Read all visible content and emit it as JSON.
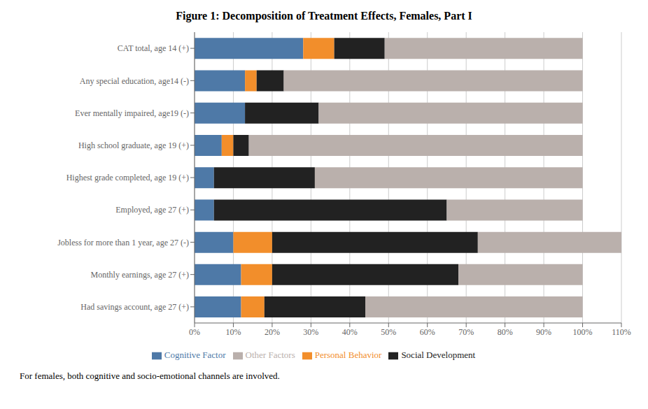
{
  "chart_data": {
    "type": "bar",
    "title": "Figure 1: Decomposition of Treatment Effects, Females, Part I",
    "annotations": [
      "For females, both cognitive and socio-emotional channels are involved."
    ],
    "orientation": "horizontal",
    "stacked": true,
    "grid": true,
    "legend": "bottom",
    "categories": [
      "CAT total, age 14 (+)",
      "Any special education, age14 (-)",
      "Ever mentally impaired, age19 (-)",
      "High school graduate, age 19 (+)",
      "Highest grade completed, age 19 (+)",
      "Employed, age 27 (+)",
      "Jobless for more than 1 year, age 27 (-)",
      "Monthly earnings, age 27 (+)",
      "Had savings account, age 27 (+)"
    ],
    "series": [
      {
        "name": "Cognitive Factor",
        "color": "#4e79a7",
        "values": [
          0.28,
          0.13,
          0.13,
          0.07,
          0.05,
          0.05,
          0.1,
          0.12,
          0.12
        ]
      },
      {
        "name": "Personal Behavior",
        "color": "#f28e2b",
        "values": [
          0.08,
          0.03,
          0.0,
          0.03,
          0.0,
          0.0,
          0.1,
          0.08,
          0.06
        ]
      },
      {
        "name": "Social Development",
        "color": "#222222",
        "values": [
          0.13,
          0.07,
          0.19,
          0.04,
          0.26,
          0.6,
          0.53,
          0.48,
          0.26
        ]
      },
      {
        "name": "Other Factors",
        "color": "#bab0ac",
        "values": [
          0.51,
          0.77,
          0.68,
          0.86,
          0.69,
          0.35,
          0.37,
          0.32,
          0.56
        ]
      }
    ],
    "xlim": [
      0,
      1.1
    ],
    "xticks": [
      {
        "value": 0,
        "label": "0%"
      },
      {
        "value": 0.1,
        "label": "10%"
      },
      {
        "value": 0.2,
        "label": "20%"
      },
      {
        "value": 0.3,
        "label": "30%"
      },
      {
        "value": 0.4,
        "label": "40%"
      },
      {
        "value": 0.5,
        "label": "50%"
      },
      {
        "value": 0.6,
        "label": "60%"
      },
      {
        "value": 0.7,
        "label": "70%"
      },
      {
        "value": 0.8,
        "label": "80%"
      },
      {
        "value": 0.9,
        "label": "90%"
      },
      {
        "value": 1.0,
        "label": "100%"
      },
      {
        "value": 1.1,
        "label": "110%"
      }
    ]
  }
}
